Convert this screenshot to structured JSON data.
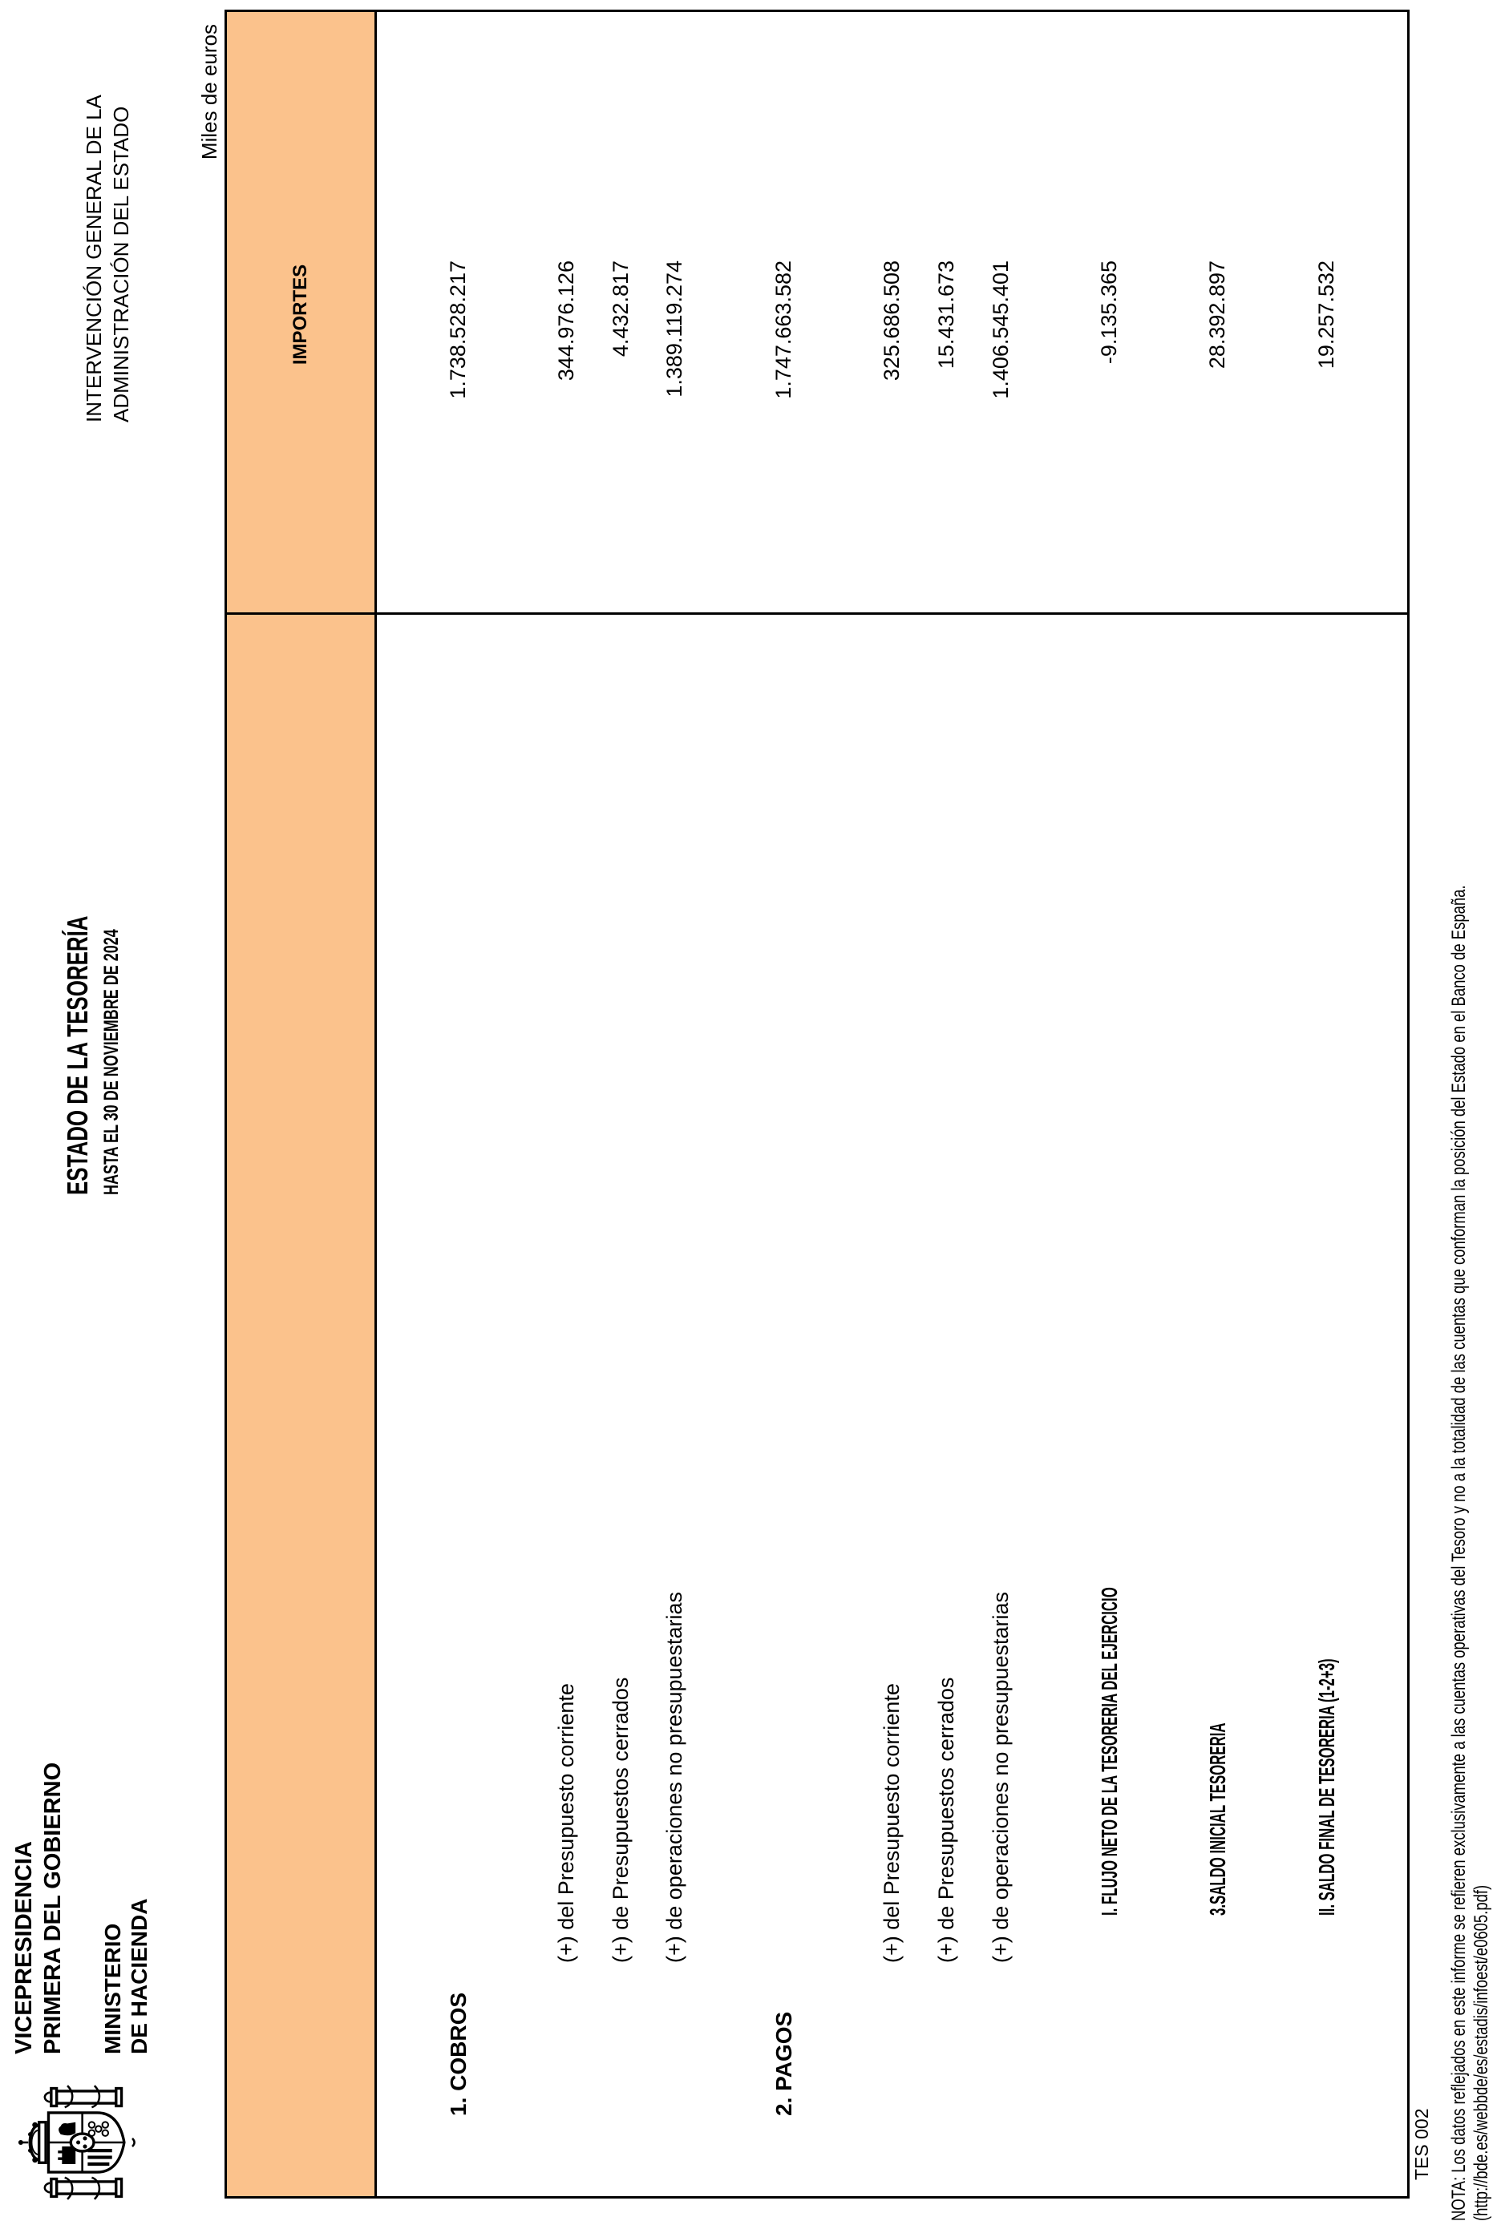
{
  "header": {
    "ministry": {
      "line1": "VICEPRESIDENCIA",
      "line2": "PRIMERA DEL GOBIERNO",
      "line3": "MINISTERIO",
      "line4": "DE HACIENDA",
      "crest_icon": "spain-coat-of-arms"
    },
    "title": "ESTADO DE LA TESORERÍA",
    "subtitle": "HASTA EL 30 DE NOVIEMBRE DE 2024",
    "agency_line1": "INTERVENCIÓN GENERAL DE LA",
    "agency_line2": "ADMINISTRACIÓN DEL ESTADO",
    "units_label": "Miles de euros"
  },
  "table": {
    "header_bg": "#FBC28C",
    "amount_header": "IMPORTES",
    "rows": [
      {
        "kind": "spacer",
        "label": "",
        "value": ""
      },
      {
        "kind": "main",
        "label": "1. COBROS",
        "value": "1.738.528.217"
      },
      {
        "kind": "spacer",
        "label": "",
        "value": ""
      },
      {
        "kind": "sub",
        "label": "(+) del Presupuesto corriente",
        "value": "344.976.126"
      },
      {
        "kind": "sub",
        "label": "(+) de Presupuestos cerrados",
        "value": "4.432.817"
      },
      {
        "kind": "sub",
        "label": "(+) de operaciones no presupuestarias",
        "value": "1.389.119.274"
      },
      {
        "kind": "spacer",
        "label": "",
        "value": ""
      },
      {
        "kind": "main",
        "label": "2. PAGOS",
        "value": "1.747.663.582"
      },
      {
        "kind": "spacer",
        "label": "",
        "value": ""
      },
      {
        "kind": "sub",
        "label": "(+) del Presupuesto corriente",
        "value": "325.686.508"
      },
      {
        "kind": "sub",
        "label": "(+) de Presupuestos cerrados",
        "value": "15.431.673"
      },
      {
        "kind": "sub",
        "label": "(+) de operaciones no presupuestarias",
        "value": "1.406.545.401"
      },
      {
        "kind": "spacer",
        "label": "",
        "value": ""
      },
      {
        "kind": "total",
        "label": "I. FLUJO NETO DE LA TESORERIA DEL EJERCICIO",
        "value": "-9.135.365"
      },
      {
        "kind": "spacer",
        "label": "",
        "value": ""
      },
      {
        "kind": "total",
        "label": "3.SALDO INICIAL TESORERIA",
        "value": "28.392.897"
      },
      {
        "kind": "spacer",
        "label": "",
        "value": ""
      },
      {
        "kind": "total",
        "label": "II. SALDO FINAL DE TESORERIA (1-2+3)",
        "value": "19.257.532"
      },
      {
        "kind": "spacer",
        "label": "",
        "value": ""
      }
    ]
  },
  "footer": {
    "form_code": "TES 002",
    "note": "NOTA: Los datos reflejados en este informe se refieren exclusivamente a las cuentas operativas del Tesoro y no a la totalidad de las cuentas que conforman la posición del Estado en el Banco de España.",
    "url_line": "(http://bde.es/webbde/es/estadis/infoest/e0605.pdf)"
  }
}
